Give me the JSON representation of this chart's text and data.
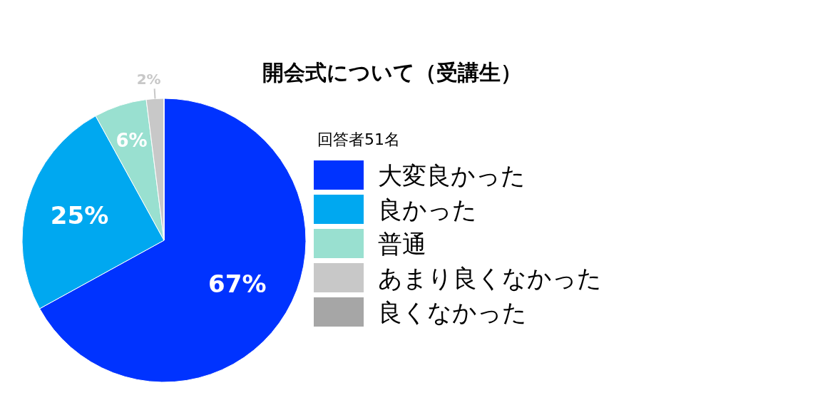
{
  "chart_data": {
    "type": "pie",
    "title": "開会式について（受講生）",
    "legend_title": "回答者51名",
    "categories": [
      "大変良かった",
      "良かった",
      "普通",
      "あまり良くなかった",
      "良くなかった"
    ],
    "values": [
      67,
      25,
      6,
      2,
      0
    ],
    "colors": [
      "#0033ff",
      "#00a8f0",
      "#99e0d0",
      "#c8c8c8",
      "#a6a6a6"
    ],
    "value_labels": [
      "67%",
      "25%",
      "6%",
      "2%",
      null
    ],
    "legend": "right"
  }
}
